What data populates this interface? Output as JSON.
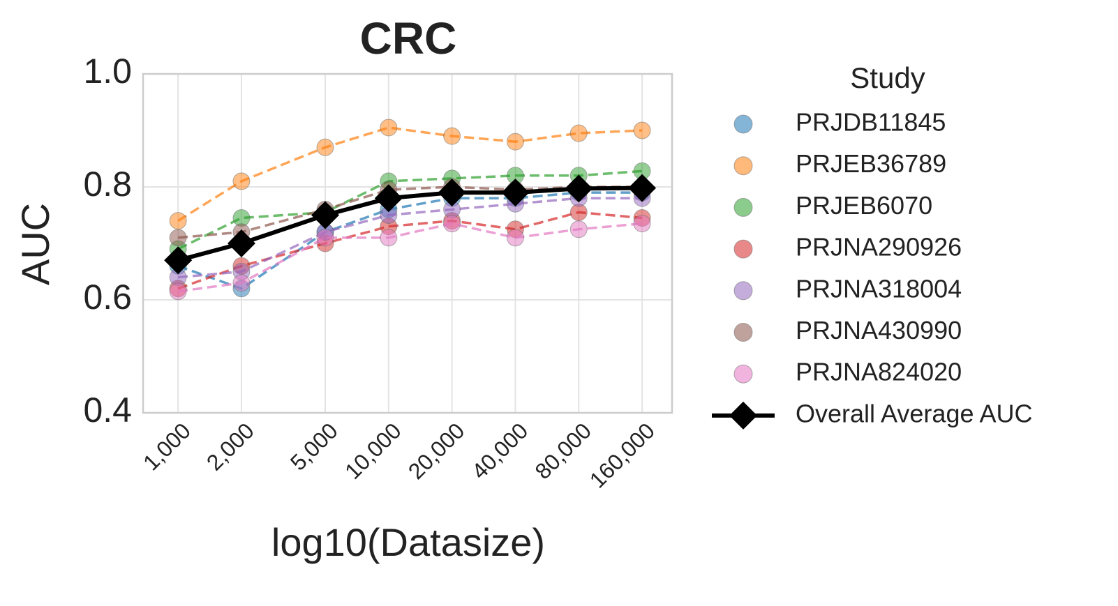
{
  "chart_data": {
    "type": "line",
    "title": "CRC",
    "x_label": "log10(Datasize)",
    "y_label": "AUC",
    "x_scale": "log",
    "grid": true,
    "legend_title": "Study",
    "legend_position": "outside right",
    "x": [
      1000,
      2000,
      5000,
      10000,
      20000,
      40000,
      80000,
      160000
    ],
    "xlim": [
      682,
      222000
    ],
    "xticks": [
      {
        "value": 1000,
        "label": "1,000"
      },
      {
        "value": 2000,
        "label": "2,000"
      },
      {
        "value": 5000,
        "label": "5,000"
      },
      {
        "value": 10000,
        "label": "10,000"
      },
      {
        "value": 20000,
        "label": "20,000"
      },
      {
        "value": 40000,
        "label": "40,000"
      },
      {
        "value": 80000,
        "label": "80,000"
      },
      {
        "value": 160000,
        "label": "160,000"
      }
    ],
    "ylim": [
      0.4,
      1
    ],
    "yticks": [
      0.4,
      0.6,
      0.8,
      {
        "value": 1,
        "label": "1.0"
      }
    ],
    "series": [
      {
        "name": "PRJDB11845",
        "color": "#1f77b4",
        "values": [
          0.66,
          0.62,
          0.72,
          0.76,
          0.78,
          0.78,
          0.79,
          0.79
        ]
      },
      {
        "name": "PRJEB36789",
        "color": "#ff7f0e",
        "values": [
          0.74,
          0.81,
          0.87,
          0.905,
          0.89,
          0.88,
          0.895,
          0.9
        ]
      },
      {
        "name": "PRJEB6070",
        "color": "#2ca02c",
        "values": [
          0.69,
          0.745,
          0.755,
          0.81,
          0.815,
          0.82,
          0.82,
          0.828
        ]
      },
      {
        "name": "PRJNA290926",
        "color": "#d62728",
        "values": [
          0.62,
          0.66,
          0.7,
          0.73,
          0.74,
          0.725,
          0.755,
          0.745
        ]
      },
      {
        "name": "PRJNA318004",
        "color": "#9467bd",
        "values": [
          0.64,
          0.65,
          0.72,
          0.75,
          0.76,
          0.77,
          0.78,
          0.78
        ]
      },
      {
        "name": "PRJNA430990",
        "color": "#8c564b",
        "values": [
          0.71,
          0.72,
          0.76,
          0.795,
          0.8,
          0.795,
          0.8,
          0.8
        ]
      },
      {
        "name": "PRJNA824020",
        "color": "#e377c2",
        "values": [
          0.615,
          0.63,
          0.71,
          0.71,
          0.735,
          0.71,
          0.725,
          0.735
        ]
      },
      {
        "name": "Overall Average AUC",
        "color": "#000000",
        "values": [
          0.67,
          0.7,
          0.75,
          0.78,
          0.79,
          0.79,
          0.797,
          0.798
        ]
      }
    ]
  }
}
